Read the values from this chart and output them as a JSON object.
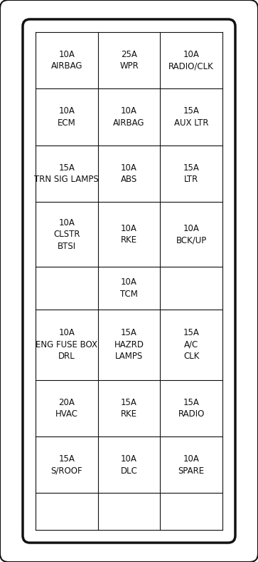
{
  "bg_color": "#ffffff",
  "outer_box_color": "#ffffff",
  "inner_box_color": "#ffffff",
  "border_color": "#111111",
  "text_color": "#111111",
  "rows": [
    [
      {
        "text": "10A\nAIRBAG"
      },
      {
        "text": "25A\nWPR"
      },
      {
        "text": "10A\nRADIO/CLK"
      }
    ],
    [
      {
        "text": "10A\nECM"
      },
      {
        "text": "10A\nAIRBAG"
      },
      {
        "text": "15A\nAUX LTR"
      }
    ],
    [
      {
        "text": "15A\nTRN SIG LAMPS"
      },
      {
        "text": "10A\nABS"
      },
      {
        "text": "15A\nLTR"
      }
    ],
    [
      {
        "text": "10A\nCLSTR\nBTSI"
      },
      {
        "text": "10A\nRKE"
      },
      {
        "text": "10A\nBCK/UP"
      }
    ],
    [
      {
        "text": ""
      },
      {
        "text": "10A\nTCM"
      },
      {
        "text": ""
      }
    ],
    [
      {
        "text": "10A\nENG FUSE BOX\nDRL"
      },
      {
        "text": "15A\nHAZRD\nLAMPS"
      },
      {
        "text": "15A\nA/C\nCLK"
      }
    ],
    [
      {
        "text": "20A\nHVAC"
      },
      {
        "text": "15A\nRKE"
      },
      {
        "text": "15A\nRADIO"
      }
    ],
    [
      {
        "text": "15A\nS/ROOF"
      },
      {
        "text": "10A\nDLC"
      },
      {
        "text": "10A\nSPARE"
      }
    ],
    [
      {
        "text": ""
      },
      {
        "text": ""
      },
      {
        "text": ""
      }
    ]
  ],
  "row_heights": [
    1.0,
    1.0,
    1.0,
    1.15,
    0.75,
    1.25,
    1.0,
    1.0,
    0.65
  ],
  "font_size": 8.5
}
